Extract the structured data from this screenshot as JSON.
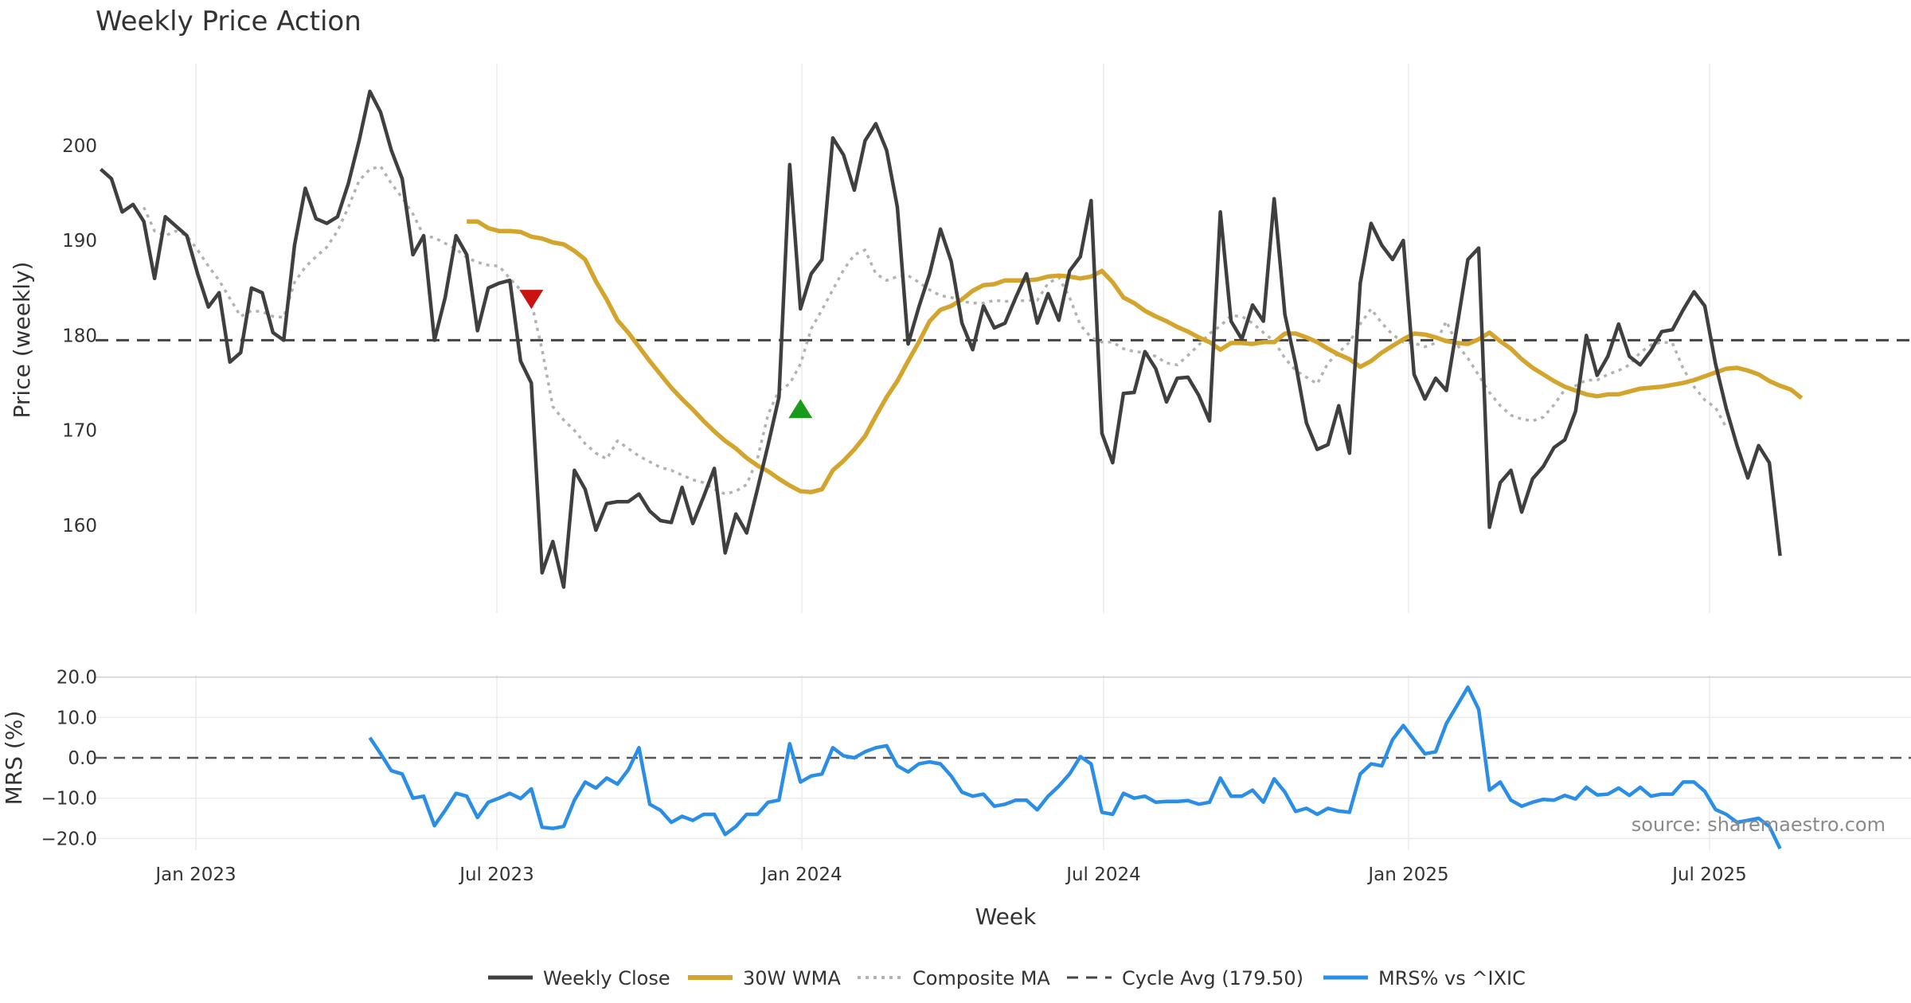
{
  "chart_data": {
    "title": "Weekly Price Action",
    "source": "source: sharemaestro.com",
    "xlabel": "Week",
    "x_tick_labels": [
      "Jan 2023",
      "Jul 2023",
      "Jan 2024",
      "Jul 2024",
      "Jan 2025",
      "Jul 2025"
    ],
    "legend": [
      "Weekly Close",
      "30W WMA",
      "Composite MA",
      "Cycle Avg (179.50)",
      "MRS% vs ^IXIC"
    ],
    "colors": {
      "close": "#3f3f3f",
      "wma": "#d4a52c",
      "composite": "#b2b2b2",
      "cycle": "#444444",
      "mrs": "#2b8ee6",
      "signal_down": "#cc1111",
      "signal_up": "#1a9a1a",
      "grid": "#ececec"
    },
    "panels": [
      {
        "type": "line",
        "ylabel": "Price (weekly)",
        "ylim": [
          150,
          208
        ],
        "y_ticks": [
          160,
          170,
          180,
          190,
          200
        ],
        "series": [
          {
            "name": "Weekly Close",
            "x_start": 0,
            "values": [
              197.5,
              196.5,
              193,
              193.8,
              192,
              186,
              192.5,
              191.5,
              190.5,
              186.5,
              183,
              184.5,
              177.2,
              178.2,
              185,
              184.5,
              180.3,
              179.5,
              189.5,
              195.5,
              192.3,
              191.8,
              192.5,
              196,
              200.5,
              205.7,
              203.5,
              199.5,
              196.5,
              188.5,
              190.5,
              179.5,
              184,
              190.5,
              188.5,
              180.5,
              185,
              185.5,
              185.8,
              177.3,
              175,
              155,
              158.3,
              153.5,
              165.8,
              163.8,
              159.5,
              162.3,
              162.5,
              162.5,
              163.3,
              161.5,
              160.5,
              160.3,
              164,
              160.2,
              163,
              166,
              157.1,
              161.2,
              159.2,
              163.8,
              168.5,
              173.5,
              198,
              182.8,
              186.5,
              188,
              200.8,
              199,
              195.3,
              200.5,
              202.3,
              199.5,
              193.5,
              179.1,
              183,
              186.5,
              191.2,
              187.8,
              181.3,
              178.5,
              183.1,
              180.8,
              181.3,
              184,
              186.5,
              181.3,
              184.4,
              181.6,
              186.8,
              188.3,
              194.2,
              169.7,
              166.6,
              173.9,
              174,
              178.3,
              176.5,
              173,
              175.5,
              175.6,
              173.7,
              171,
              193,
              181.5,
              179.6,
              183.2,
              181.5,
              194.4,
              182.2,
              177,
              170.8,
              168,
              168.5,
              172.6,
              167.6,
              185.5,
              191.8,
              189.5,
              188,
              190,
              175.9,
              173.3,
              175.5,
              174.2,
              181,
              188,
              189.2,
              159.8,
              164.5,
              165.8,
              161.4,
              164.9,
              166.2,
              168.2,
              169,
              172,
              180,
              175.8,
              177.8,
              181.2,
              177.8,
              176.9,
              178.4,
              180.4,
              180.6,
              182.7,
              184.6,
              183.1,
              177,
              172.3,
              168.4,
              165,
              168.4,
              166.6,
              156.8
            ]
          },
          {
            "name": "30W WMA",
            "x_start": 34,
            "values": [
              192,
              192,
              191.3,
              191,
              191,
              190.9,
              190.4,
              190.2,
              189.8,
              189.6,
              188.9,
              188,
              185.7,
              183.8,
              181.6,
              180.3,
              178.8,
              177.3,
              175.9,
              174.5,
              173.3,
              172.2,
              171,
              169.9,
              168.9,
              168.1,
              167.1,
              166.3,
              165.7,
              164.9,
              164.2,
              163.6,
              163.5,
              163.8,
              165.8,
              166.8,
              168,
              169.4,
              171.5,
              173.5,
              175.2,
              177.3,
              179.3,
              181.5,
              182.7,
              183.1,
              183.8,
              184.7,
              185.3,
              185.4,
              185.8,
              185.8,
              185.8,
              185.9,
              186.2,
              186.3,
              186.2,
              186,
              186.2,
              186.8,
              185.6,
              184,
              183.4,
              182.6,
              182,
              181.5,
              180.9,
              180.4,
              179.8,
              179.3,
              178.5,
              179.2,
              179.2,
              179.1,
              179.3,
              179.3,
              180.2,
              180.2,
              179.8,
              179.3,
              178.6,
              178,
              177.5,
              176.7,
              177.3,
              178.2,
              178.9,
              179.6,
              180.2,
              180.1,
              179.8,
              179.4,
              179.2,
              179.1,
              179.6,
              180.3,
              179.4,
              178.6,
              177.5,
              176.6,
              175.9,
              175.2,
              174.6,
              174.2,
              173.8,
              173.6,
              173.8,
              173.8,
              174.1,
              174.4,
              174.5,
              174.6,
              174.8,
              175,
              175.3,
              175.7,
              176.1,
              176.5,
              176.6,
              176.3,
              175.9,
              175.2,
              174.7,
              174.3,
              173.4
            ]
          },
          {
            "name": "Composite MA",
            "x_start": 4,
            "values": [
              193.5,
              191,
              190.5,
              191,
              190.5,
              189,
              187.3,
              185.8,
              183.9,
              182,
              182.6,
              182.5,
              182,
              181.9,
              185.6,
              187.2,
              188.3,
              189.3,
              191,
              193.5,
              196.3,
              197.5,
              197.8,
              196,
              194.5,
              192.8,
              190.5,
              190.3,
              189.7,
              189.1,
              188.2,
              187.7,
              187.4,
              187.3,
              186,
              184.8,
              183.5,
              178.5,
              172.5,
              171.1,
              170,
              168.6,
              167.6,
              167,
              168.9,
              168.1,
              167.3,
              166.7,
              166.1,
              165.8,
              165.3,
              164.8,
              164.5,
              163.8,
              163.3,
              163.6,
              164.3,
              167,
              171.7,
              174.2,
              174.9,
              177,
              180.7,
              182.7,
              184.8,
              186.9,
              188.5,
              189,
              186.5,
              185.8,
              186.2,
              186.3,
              185.6,
              184.8,
              184.2,
              184,
              183.6,
              183.4,
              183.4,
              183.7,
              183.6,
              183.6,
              183.7,
              183.7,
              185.5,
              186.1,
              184,
              181.1,
              179.8,
              179.3,
              179.3,
              178.6,
              178.3,
              178.2,
              177.8,
              177.1,
              176.9,
              177.9,
              179,
              180.2,
              181,
              182.1,
              182,
              181.3,
              180.3,
              179.4,
              177.6,
              176.3,
              175.6,
              174.9,
              177.1,
              178.2,
              179.3,
              181.2,
              182.8,
              181.3,
              180.1,
              179.3,
              179.2,
              178.8,
              179.2,
              181.5,
              179,
              177.6,
              175.8,
              174,
              172.6,
              171.6,
              171.2,
              171,
              171.4,
              172.7,
              174.3,
              174.7,
              175.3,
              175.3,
              175.9,
              176.3,
              176.9,
              178.2,
              179,
              179.3,
              179.2,
              176.5,
              174.6,
              173.2,
              172.4,
              170.3
            ]
          },
          {
            "name": "Cycle Avg (179.50)",
            "value": 179.5
          }
        ],
        "markers": [
          {
            "type": "sell",
            "shape": "triangle-down",
            "x": 40,
            "y": 183.8
          },
          {
            "type": "buy",
            "shape": "triangle-up",
            "x": 65,
            "y": 172.3
          }
        ]
      },
      {
        "type": "line",
        "ylabel": "MRS (%)",
        "ylim": [
          -22,
          21
        ],
        "y_ticks": [
          -20,
          -10,
          0,
          10,
          20
        ],
        "y_tick_labels": [
          "−20.0",
          "−10.0",
          "0.0",
          "10.0",
          "20.0"
        ],
        "zero_line": 0,
        "series": [
          {
            "name": "MRS% vs ^IXIC",
            "x_start": 25,
            "values": [
              5,
              1,
              -3.2,
              -4,
              -10,
              -9.5,
              -16.8,
              -13,
              -8.8,
              -9.5,
              -14.8,
              -11,
              -10,
              -8.8,
              -10.1,
              -7.7,
              -17.2,
              -17.5,
              -17,
              -10.5,
              -6,
              -7.5,
              -5,
              -6.5,
              -3,
              2.5,
              -11.5,
              -13,
              -16,
              -14.5,
              -15.5,
              -14,
              -14,
              -19,
              -17,
              -14,
              -14,
              -11,
              -10.5,
              3.5,
              -6,
              -4.5,
              -4,
              2.5,
              0.5,
              0,
              1.5,
              2.5,
              3,
              -2,
              -3.5,
              -1.5,
              -1,
              -1.5,
              -4.5,
              -8.5,
              -9.5,
              -9,
              -12,
              -11.5,
              -10.5,
              -10.5,
              -12.9,
              -9.5,
              -7,
              -4,
              0.3,
              -1.5,
              -13.5,
              -14,
              -8.8,
              -10,
              -9.5,
              -11,
              -10.8,
              -10.8,
              -10.6,
              -11.5,
              -11,
              -5,
              -9.5,
              -9.5,
              -8,
              -11,
              -5.2,
              -8.5,
              -13.3,
              -12.5,
              -14,
              -12.5,
              -13.2,
              -13.5,
              -4,
              -1.5,
              -2,
              4.5,
              8,
              4.5,
              1,
              1.5,
              8.5,
              13,
              17.5,
              12,
              -8,
              -6,
              -10.5,
              -12,
              -11,
              -10.3,
              -10.5,
              -9.3,
              -10.2,
              -7.3,
              -9.2,
              -9,
              -7.5,
              -9.3,
              -7.3,
              -9.5,
              -9,
              -9,
              -6,
              -6,
              -8.3,
              -12.8,
              -14,
              -16,
              -15.5,
              -15,
              -17,
              -22.5
            ]
          }
        ]
      }
    ]
  }
}
